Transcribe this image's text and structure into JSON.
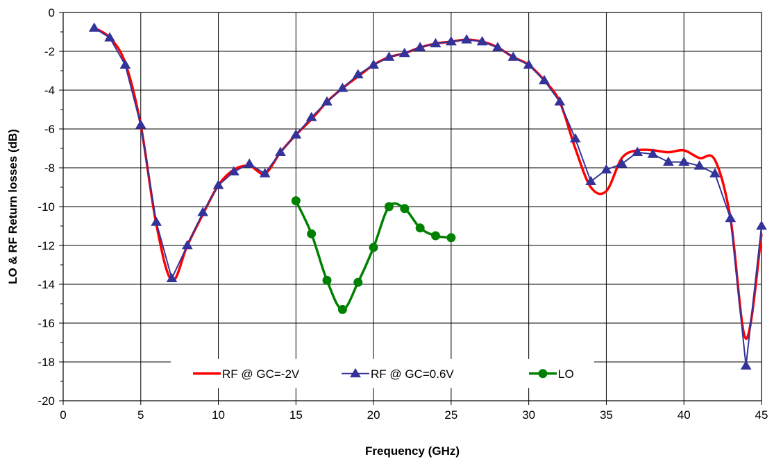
{
  "chart_data": {
    "type": "line",
    "title": "",
    "xlabel": "Frequency (GHz)",
    "ylabel": "LO & RF Return losses (dB)",
    "xlim": [
      0,
      45
    ],
    "ylim": [
      -20,
      0
    ],
    "x_ticks": [
      0,
      5,
      10,
      15,
      20,
      25,
      30,
      35,
      40,
      45
    ],
    "y_ticks": [
      0,
      -2,
      -4,
      -6,
      -8,
      -10,
      -12,
      -14,
      -16,
      -18,
      -20
    ],
    "grid": true,
    "legend_position": "bottom-center",
    "series": [
      {
        "name": "RF @ GC=-2V",
        "color": "#ff0000",
        "marker": "none",
        "smooth": true,
        "x": [
          2,
          3,
          4,
          5,
          6,
          7,
          8,
          9,
          10,
          11,
          12,
          13,
          14,
          15,
          16,
          17,
          18,
          19,
          20,
          21,
          22,
          23,
          24,
          25,
          26,
          27,
          28,
          29,
          30,
          31,
          32,
          33,
          34,
          35,
          36,
          37,
          38,
          39,
          40,
          41,
          42,
          43,
          44,
          45
        ],
        "y": [
          -0.8,
          -1.3,
          -2.6,
          -5.8,
          -10.9,
          -13.8,
          -12.0,
          -10.4,
          -8.9,
          -8.1,
          -7.9,
          -8.3,
          -7.2,
          -6.3,
          -5.5,
          -4.6,
          -3.9,
          -3.3,
          -2.7,
          -2.3,
          -2.1,
          -1.8,
          -1.6,
          -1.5,
          -1.4,
          -1.5,
          -1.8,
          -2.3,
          -2.7,
          -3.5,
          -4.6,
          -7.0,
          -9.0,
          -9.2,
          -7.5,
          -7.1,
          -7.1,
          -7.2,
          -7.1,
          -7.5,
          -7.6,
          -10.6,
          -16.8,
          -11.4
        ]
      },
      {
        "name": "RF @ GC=0.6V",
        "color": "#333399",
        "marker": "triangle",
        "smooth": false,
        "x": [
          2,
          3,
          4,
          5,
          6,
          7,
          8,
          9,
          10,
          11,
          12,
          13,
          14,
          15,
          16,
          17,
          18,
          19,
          20,
          21,
          22,
          23,
          24,
          25,
          26,
          27,
          28,
          29,
          30,
          31,
          32,
          33,
          34,
          35,
          36,
          37,
          38,
          39,
          40,
          41,
          42,
          43,
          44,
          45
        ],
        "y": [
          -0.8,
          -1.3,
          -2.7,
          -5.8,
          -10.8,
          -13.7,
          -12.0,
          -10.3,
          -8.9,
          -8.2,
          -7.8,
          -8.3,
          -7.2,
          -6.3,
          -5.4,
          -4.6,
          -3.9,
          -3.2,
          -2.7,
          -2.3,
          -2.1,
          -1.8,
          -1.6,
          -1.5,
          -1.4,
          -1.5,
          -1.8,
          -2.3,
          -2.7,
          -3.5,
          -4.6,
          -6.5,
          -8.7,
          -8.1,
          -7.8,
          -7.2,
          -7.3,
          -7.7,
          -7.7,
          -7.9,
          -8.3,
          -10.6,
          -18.2,
          -11.0
        ]
      },
      {
        "name": "LO",
        "color": "#008000",
        "marker": "circle",
        "smooth": true,
        "x": [
          15,
          16,
          17,
          18,
          19,
          20,
          21,
          22,
          23,
          24,
          25
        ],
        "y": [
          -9.7,
          -11.4,
          -13.8,
          -15.3,
          -13.9,
          -12.1,
          -10.0,
          -10.1,
          -11.1,
          -11.5,
          -11.6
        ]
      }
    ]
  }
}
